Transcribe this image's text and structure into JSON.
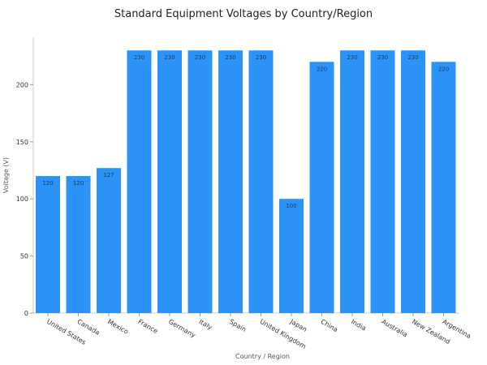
{
  "chart_data": {
    "type": "bar",
    "title": "Standard Equipment Voltages by Country/Region",
    "xlabel": "Country / Region",
    "ylabel": "Voltage (V)",
    "categories": [
      "United States",
      "Canada",
      "Mexico",
      "France",
      "Germany",
      "Italy",
      "Spain",
      "United Kingdom",
      "Japan",
      "China",
      "India",
      "Australia",
      "New Zealand",
      "Argentina"
    ],
    "values": [
      120,
      120,
      127,
      230,
      230,
      230,
      230,
      230,
      100,
      220,
      230,
      230,
      230,
      220
    ],
    "data_labels": [
      "120",
      "120",
      "127",
      "230",
      "230",
      "230",
      "230",
      "230",
      "100",
      "220",
      "230",
      "230",
      "230",
      "220"
    ],
    "yticks": [
      0,
      50,
      100,
      150,
      200
    ],
    "ylim": [
      0,
      241.5
    ],
    "bar_color": "#2b93f7",
    "grid": false,
    "legend": "none"
  }
}
